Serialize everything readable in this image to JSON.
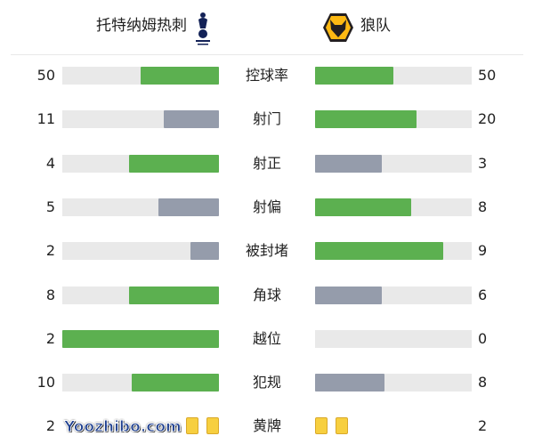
{
  "home": {
    "name": "托特纳姆热刺",
    "logo": "tottenham-cockerel-logo"
  },
  "away": {
    "name": "狼队",
    "logo": "wolves-logo"
  },
  "colors": {
    "better": "#5cb050",
    "worse": "#959cab",
    "track": "#e9e9e9",
    "card": "#f7cf3f"
  },
  "stats": [
    {
      "label": "控球率",
      "home": 50,
      "away": 50
    },
    {
      "label": "射门",
      "home": 11,
      "away": 20
    },
    {
      "label": "射正",
      "home": 4,
      "away": 3
    },
    {
      "label": "射偏",
      "home": 5,
      "away": 8
    },
    {
      "label": "被封堵",
      "home": 2,
      "away": 9
    },
    {
      "label": "角球",
      "home": 8,
      "away": 6
    },
    {
      "label": "越位",
      "home": 2,
      "away": 0
    },
    {
      "label": "犯规",
      "home": 10,
      "away": 8
    }
  ],
  "yellow": {
    "label": "黄牌",
    "home": 2,
    "away": 2
  },
  "watermark": "Yoozhibo.com"
}
